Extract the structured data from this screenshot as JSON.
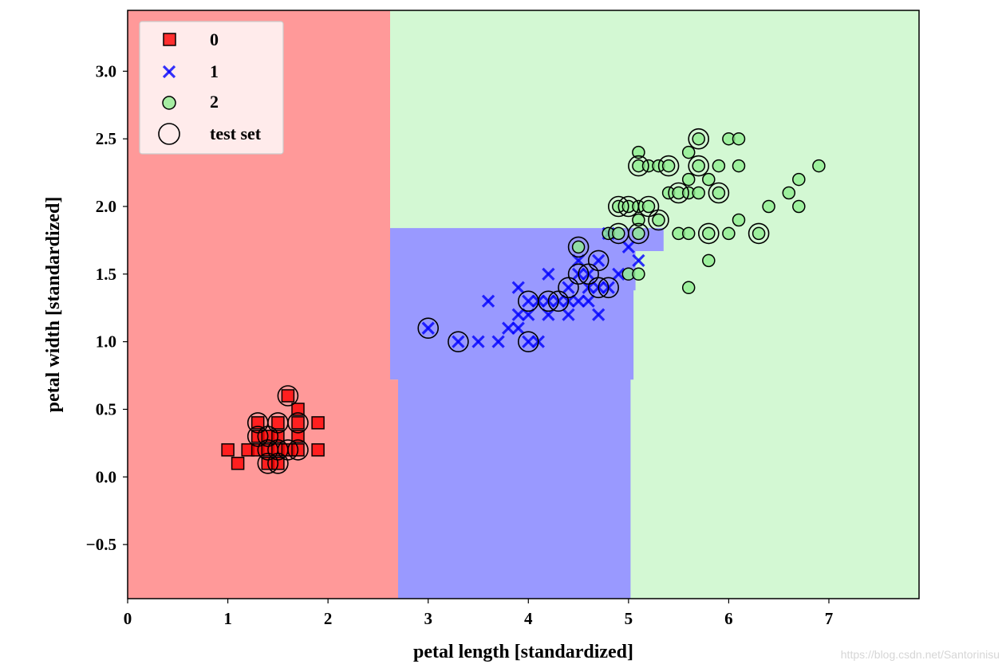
{
  "chart_data": {
    "type": "scatter",
    "xlabel": "petal length [standardized]",
    "ylabel": "petal width [standardized]",
    "xlim": [
      0,
      7.9
    ],
    "ylim": [
      -0.9,
      3.45
    ],
    "xticks": [
      0,
      1,
      2,
      3,
      4,
      5,
      6,
      7
    ],
    "yticks": [
      -0.5,
      0.0,
      0.5,
      1.0,
      1.5,
      2.0,
      2.5,
      3.0
    ],
    "ytick_labels": [
      "−0.5",
      "0.0",
      "0.5",
      "1.0",
      "1.5",
      "2.0",
      "2.5",
      "3.0"
    ],
    "legend_position": "top-left",
    "colors": {
      "class0": "#ff0000",
      "class1": "#0000ff",
      "class2": "#90ee90",
      "region0": "#ff9999",
      "region1": "#9999ff",
      "region2": "#d3f8d3"
    },
    "decision_regions": [
      {
        "class": "2",
        "polygon": [
          [
            0,
            -0.9
          ],
          [
            7.9,
            -0.9
          ],
          [
            7.9,
            3.45
          ],
          [
            0,
            3.45
          ]
        ]
      },
      {
        "class": "1",
        "polygon": [
          [
            2.62,
            1.84
          ],
          [
            5.35,
            1.84
          ],
          [
            5.35,
            1.67
          ],
          [
            5.07,
            1.67
          ],
          [
            5.07,
            1.38
          ],
          [
            5.05,
            1.38
          ],
          [
            5.05,
            0.72
          ],
          [
            5.02,
            0.72
          ],
          [
            5.02,
            -0.9
          ],
          [
            2.7,
            -0.9
          ],
          [
            2.7,
            0.72
          ],
          [
            2.62,
            0.72
          ]
        ]
      },
      {
        "class": "0",
        "polygon": [
          [
            0,
            -0.9
          ],
          [
            2.7,
            -0.9
          ],
          [
            2.7,
            0.72
          ],
          [
            2.62,
            0.72
          ],
          [
            2.62,
            3.45
          ],
          [
            0,
            3.45
          ]
        ]
      }
    ],
    "series": [
      {
        "name": "0",
        "marker": "square",
        "points": [
          [
            1.0,
            0.2
          ],
          [
            1.1,
            0.1
          ],
          [
            1.2,
            0.2
          ],
          [
            1.3,
            0.2
          ],
          [
            1.3,
            0.3
          ],
          [
            1.3,
            0.4
          ],
          [
            1.4,
            0.1
          ],
          [
            1.4,
            0.2
          ],
          [
            1.4,
            0.3
          ],
          [
            1.5,
            0.1
          ],
          [
            1.5,
            0.2
          ],
          [
            1.5,
            0.3
          ],
          [
            1.5,
            0.4
          ],
          [
            1.6,
            0.2
          ],
          [
            1.6,
            0.6
          ],
          [
            1.7,
            0.2
          ],
          [
            1.7,
            0.3
          ],
          [
            1.7,
            0.4
          ],
          [
            1.7,
            0.5
          ],
          [
            1.9,
            0.2
          ],
          [
            1.9,
            0.4
          ]
        ]
      },
      {
        "name": "1",
        "marker": "x",
        "points": [
          [
            3.0,
            1.1
          ],
          [
            3.3,
            1.0
          ],
          [
            3.5,
            1.0
          ],
          [
            3.6,
            1.3
          ],
          [
            3.7,
            1.0
          ],
          [
            3.8,
            1.1
          ],
          [
            3.9,
            1.1
          ],
          [
            3.9,
            1.2
          ],
          [
            3.9,
            1.4
          ],
          [
            4.0,
            1.0
          ],
          [
            4.0,
            1.2
          ],
          [
            4.0,
            1.3
          ],
          [
            4.1,
            1.0
          ],
          [
            4.1,
            1.3
          ],
          [
            4.2,
            1.2
          ],
          [
            4.2,
            1.3
          ],
          [
            4.2,
            1.5
          ],
          [
            4.3,
            1.3
          ],
          [
            4.4,
            1.2
          ],
          [
            4.4,
            1.3
          ],
          [
            4.4,
            1.4
          ],
          [
            4.5,
            1.3
          ],
          [
            4.5,
            1.5
          ],
          [
            4.5,
            1.6
          ],
          [
            4.6,
            1.3
          ],
          [
            4.6,
            1.4
          ],
          [
            4.6,
            1.5
          ],
          [
            4.7,
            1.2
          ],
          [
            4.7,
            1.4
          ],
          [
            4.7,
            1.6
          ],
          [
            4.8,
            1.4
          ],
          [
            4.8,
            1.8
          ],
          [
            4.9,
            1.5
          ],
          [
            5.0,
            1.7
          ],
          [
            5.1,
            1.6
          ]
        ]
      },
      {
        "name": "2",
        "marker": "circle",
        "points": [
          [
            4.5,
            1.7
          ],
          [
            4.8,
            1.8
          ],
          [
            4.9,
            1.8
          ],
          [
            4.9,
            2.0
          ],
          [
            5.0,
            1.5
          ],
          [
            5.0,
            2.0
          ],
          [
            5.1,
            1.5
          ],
          [
            5.1,
            1.8
          ],
          [
            5.1,
            1.9
          ],
          [
            5.1,
            2.0
          ],
          [
            5.1,
            2.3
          ],
          [
            5.1,
            2.4
          ],
          [
            5.2,
            2.0
          ],
          [
            5.2,
            2.3
          ],
          [
            5.3,
            1.9
          ],
          [
            5.3,
            2.3
          ],
          [
            5.4,
            2.1
          ],
          [
            5.4,
            2.3
          ],
          [
            5.5,
            1.8
          ],
          [
            5.5,
            2.1
          ],
          [
            5.6,
            1.4
          ],
          [
            5.6,
            1.8
          ],
          [
            5.6,
            2.1
          ],
          [
            5.6,
            2.2
          ],
          [
            5.6,
            2.4
          ],
          [
            5.7,
            2.1
          ],
          [
            5.7,
            2.3
          ],
          [
            5.7,
            2.5
          ],
          [
            5.8,
            1.8
          ],
          [
            5.8,
            1.6
          ],
          [
            5.8,
            2.2
          ],
          [
            5.9,
            2.1
          ],
          [
            5.9,
            2.3
          ],
          [
            6.0,
            1.8
          ],
          [
            6.0,
            2.5
          ],
          [
            6.1,
            1.9
          ],
          [
            6.1,
            2.3
          ],
          [
            6.1,
            2.5
          ],
          [
            6.3,
            1.8
          ],
          [
            6.4,
            2.0
          ],
          [
            6.6,
            2.1
          ],
          [
            6.7,
            2.0
          ],
          [
            6.7,
            2.2
          ],
          [
            6.9,
            2.3
          ]
        ]
      },
      {
        "name": "test set",
        "marker": "ring",
        "points": [
          [
            1.3,
            0.4
          ],
          [
            1.3,
            0.3
          ],
          [
            1.4,
            0.3
          ],
          [
            1.4,
            0.2
          ],
          [
            1.4,
            0.1
          ],
          [
            1.5,
            0.4
          ],
          [
            1.5,
            0.2
          ],
          [
            1.5,
            0.1
          ],
          [
            1.6,
            0.6
          ],
          [
            1.6,
            0.2
          ],
          [
            1.7,
            0.4
          ],
          [
            1.7,
            0.2
          ],
          [
            3.0,
            1.1
          ],
          [
            3.3,
            1.0
          ],
          [
            4.0,
            1.3
          ],
          [
            4.0,
            1.0
          ],
          [
            4.2,
            1.3
          ],
          [
            4.3,
            1.3
          ],
          [
            4.4,
            1.4
          ],
          [
            4.5,
            1.5
          ],
          [
            4.5,
            1.7
          ],
          [
            4.6,
            1.5
          ],
          [
            4.7,
            1.6
          ],
          [
            4.7,
            1.4
          ],
          [
            4.8,
            1.4
          ],
          [
            4.9,
            2.0
          ],
          [
            4.9,
            1.8
          ],
          [
            5.0,
            2.0
          ],
          [
            5.1,
            1.8
          ],
          [
            5.1,
            2.3
          ],
          [
            5.2,
            2.0
          ],
          [
            5.3,
            1.9
          ],
          [
            5.4,
            2.3
          ],
          [
            5.5,
            2.1
          ],
          [
            5.7,
            2.5
          ],
          [
            5.7,
            2.3
          ],
          [
            5.8,
            1.8
          ],
          [
            5.9,
            2.1
          ],
          [
            6.3,
            1.8
          ]
        ]
      }
    ]
  },
  "watermark": "https://blog.csdn.net/Santorinisu"
}
